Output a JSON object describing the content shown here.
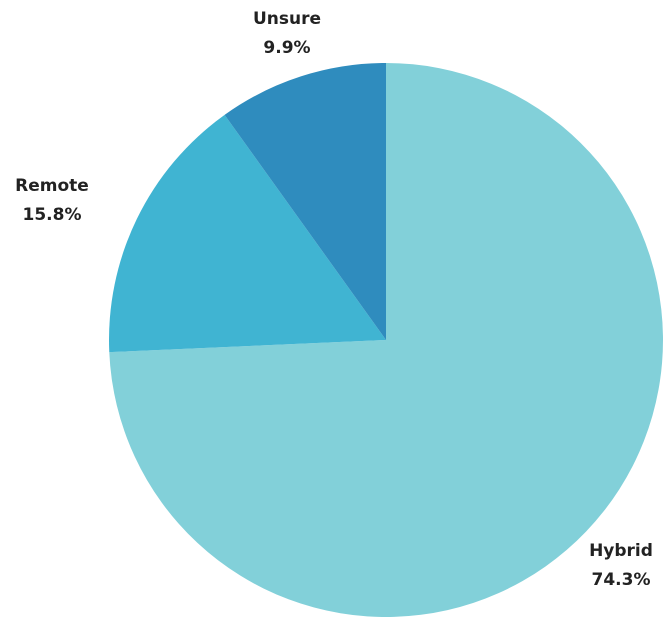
{
  "chart_data": {
    "type": "pie",
    "slices": [
      {
        "label": "Hybrid",
        "value": 74.3,
        "value_label": "74.3%",
        "color": "#82D0D9"
      },
      {
        "label": "Remote",
        "value": 15.8,
        "value_label": "15.8%",
        "color": "#40B4D2"
      },
      {
        "label": "Unsure",
        "value": 9.9,
        "value_label": "9.9%",
        "color": "#2F8CBE"
      }
    ],
    "start": "12 o'clock",
    "direction": "clockwise",
    "legend": "none"
  }
}
